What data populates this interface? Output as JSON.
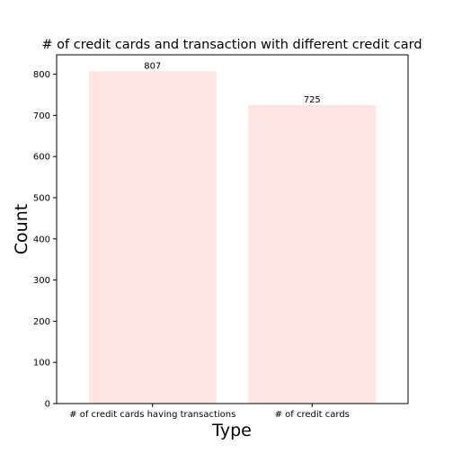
{
  "chart_data": {
    "type": "bar",
    "title": "# of credit cards and transaction with different credit card",
    "xlabel": "Type",
    "ylabel": "Count",
    "categories": [
      "# of credit cards having transactions",
      "# of credit cards"
    ],
    "values": [
      807,
      725
    ],
    "data_labels": [
      "807",
      "725"
    ],
    "ylim": [
      0,
      847
    ],
    "yticks": [
      0,
      100,
      200,
      300,
      400,
      500,
      600,
      700,
      800
    ],
    "bar_color": "#ffe4e1",
    "grid": false,
    "legend": "none"
  }
}
